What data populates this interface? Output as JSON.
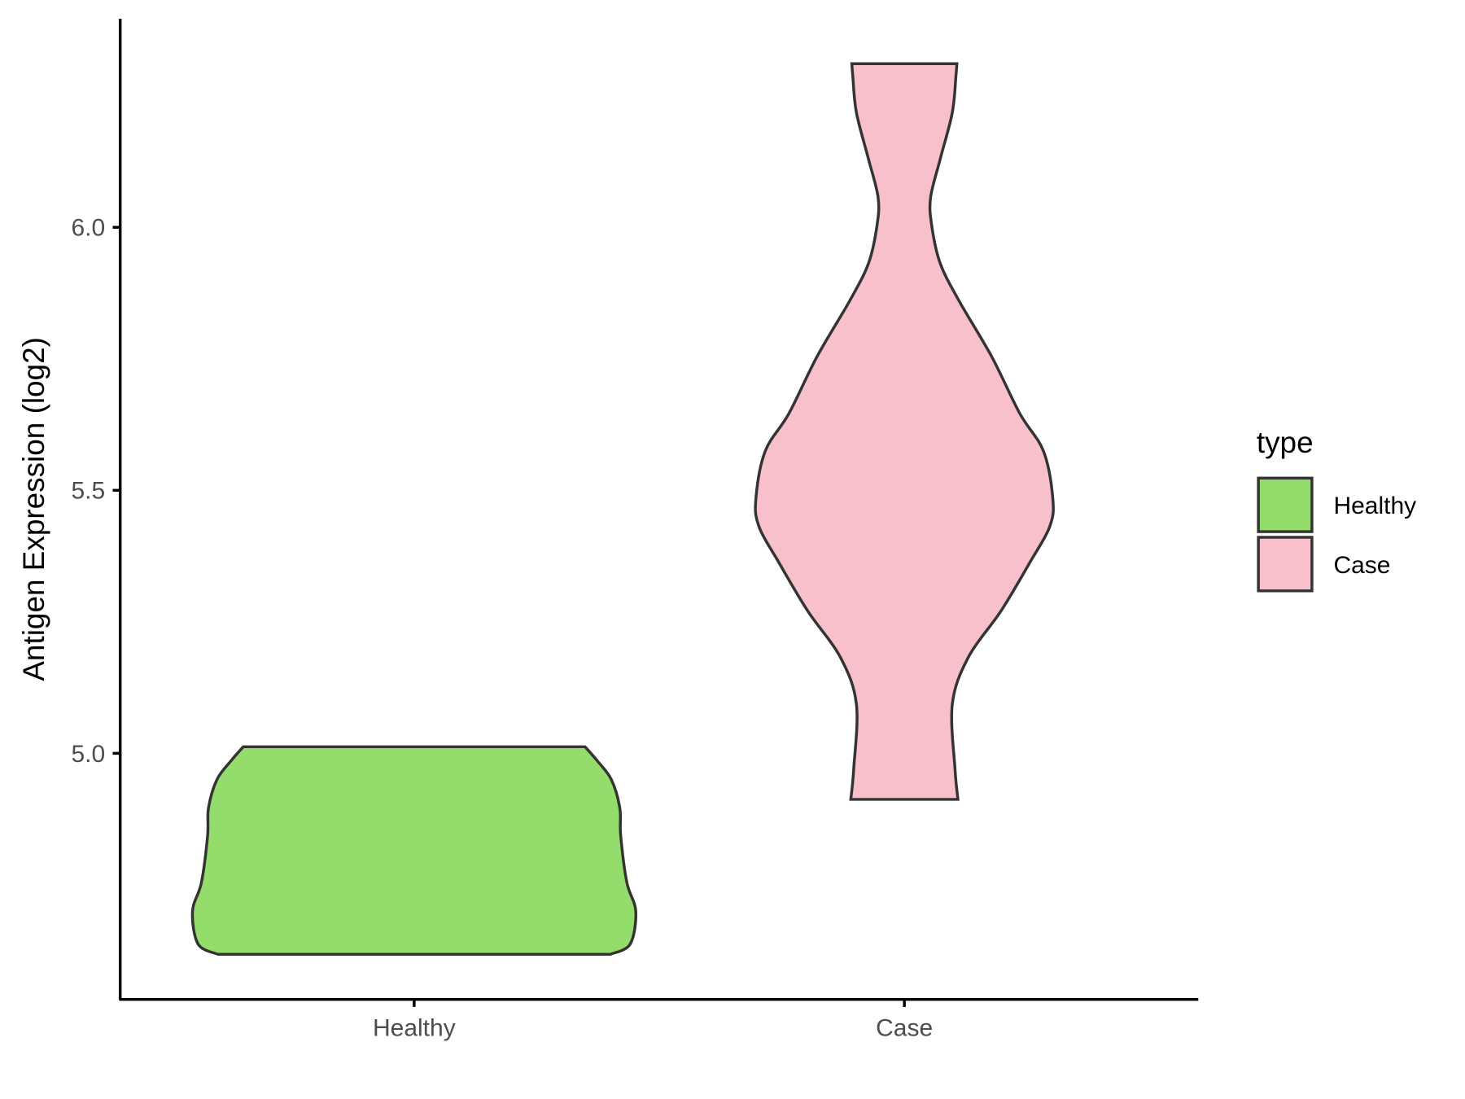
{
  "chart_data": {
    "type": "violin",
    "title": "",
    "xlabel": "",
    "ylabel": "Antigen Expression (log2)",
    "categories": [
      "Healthy",
      "Case"
    ],
    "ylim": [
      4.534,
      6.396
    ],
    "yticks": [
      5.0,
      5.5,
      6.0
    ],
    "ytick_labels": [
      "5.0",
      "5.5",
      "6.0"
    ],
    "grid": false,
    "legend": {
      "title": "type",
      "position": "right",
      "entries": [
        "Healthy",
        "Case"
      ]
    },
    "series": [
      {
        "category": "Healthy",
        "color": "#94DC6B",
        "min": 4.618,
        "max": 5.0125,
        "density_profile": [
          [
            4.618,
            0.886
          ],
          [
            4.6375,
            0.975
          ],
          [
            4.7,
            1.0
          ],
          [
            4.754,
            0.96
          ],
          [
            4.843,
            0.932
          ],
          [
            4.896,
            0.928
          ],
          [
            4.95,
            0.89
          ],
          [
            4.986,
            0.826
          ],
          [
            5.0125,
            0.771
          ]
        ]
      },
      {
        "category": "Case",
        "color": "#F7C0CB",
        "min": 4.9125,
        "max": 6.311,
        "density_profile": [
          [
            4.9125,
            0.361
          ],
          [
            4.968,
            0.342
          ],
          [
            5.093,
            0.323
          ],
          [
            5.182,
            0.43
          ],
          [
            5.271,
            0.652
          ],
          [
            5.361,
            0.842
          ],
          [
            5.432,
            0.981
          ],
          [
            5.486,
            1.0
          ],
          [
            5.575,
            0.937
          ],
          [
            5.646,
            0.778
          ],
          [
            5.754,
            0.589
          ],
          [
            5.861,
            0.367
          ],
          [
            5.932,
            0.241
          ],
          [
            6.004,
            0.184
          ],
          [
            6.057,
            0.177
          ],
          [
            6.129,
            0.241
          ],
          [
            6.218,
            0.323
          ],
          [
            6.289,
            0.348
          ],
          [
            6.311,
            0.354
          ]
        ]
      }
    ]
  },
  "outline_color": "#333333"
}
